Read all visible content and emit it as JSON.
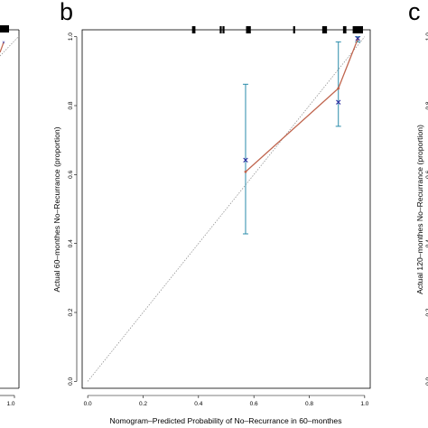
{
  "panel_letters": {
    "b": "b",
    "c": "c"
  },
  "chart_data": [
    {
      "panel": "left (partial)",
      "type": "line",
      "visible_ticks": [
        "1.0"
      ],
      "series": [
        {
          "x": [
            0.97
          ],
          "y": [
            0.99
          ],
          "color": "#c0654e"
        }
      ],
      "reference_line": "diagonal dotted"
    },
    {
      "panel": "b",
      "type": "line",
      "title": "",
      "xlabel": "Nomogram–Predicted Probability of No–Recurrance in 60–monthes",
      "ylabel": "Actual 60–monthes No–Recurrance (proportion)",
      "xlim": [
        -0.02,
        1.02
      ],
      "ylim": [
        -0.02,
        1.02
      ],
      "x_ticks": [
        "0.0",
        "0.2",
        "0.4",
        "0.6",
        "0.8",
        "1.0"
      ],
      "y_ticks": [
        "0.0",
        "0.2",
        "0.4",
        "0.6",
        "0.8",
        "1.0"
      ],
      "reference_line": {
        "style": "dotted",
        "color": "#888888",
        "from": [
          0,
          0
        ],
        "to": [
          1,
          1
        ]
      },
      "series": [
        {
          "kind": "observed",
          "color": "#c0654e",
          "x": [
            0.57,
            0.905,
            0.975
          ],
          "y": [
            0.608,
            0.85,
            0.993
          ],
          "ci_low": [
            0.428,
            0.74,
            0.985
          ],
          "ci_high": [
            0.862,
            0.985,
            1.0
          ]
        },
        {
          "kind": "bias-corrected",
          "color": "#2a2aa0",
          "marker": "x",
          "x": [
            0.57,
            0.905,
            0.975
          ],
          "y": [
            0.642,
            0.81,
            0.995
          ]
        }
      ],
      "ci_color": "#2a8caa",
      "rug_x": [
        0.38,
        0.385,
        0.48,
        0.49,
        0.575,
        0.58,
        0.585,
        0.745,
        0.85,
        0.855,
        0.86,
        0.925,
        0.93,
        0.96,
        0.965,
        0.97,
        0.975,
        0.98,
        0.985,
        0.99
      ]
    },
    {
      "panel": "c (partial)",
      "type": "line",
      "ylabel": "Actual 120–monthes No–Recurrance (proportion)",
      "y_ticks": [
        "1.0",
        "0.8",
        "0.6",
        "0.4",
        "0.2",
        "0.0"
      ]
    }
  ]
}
